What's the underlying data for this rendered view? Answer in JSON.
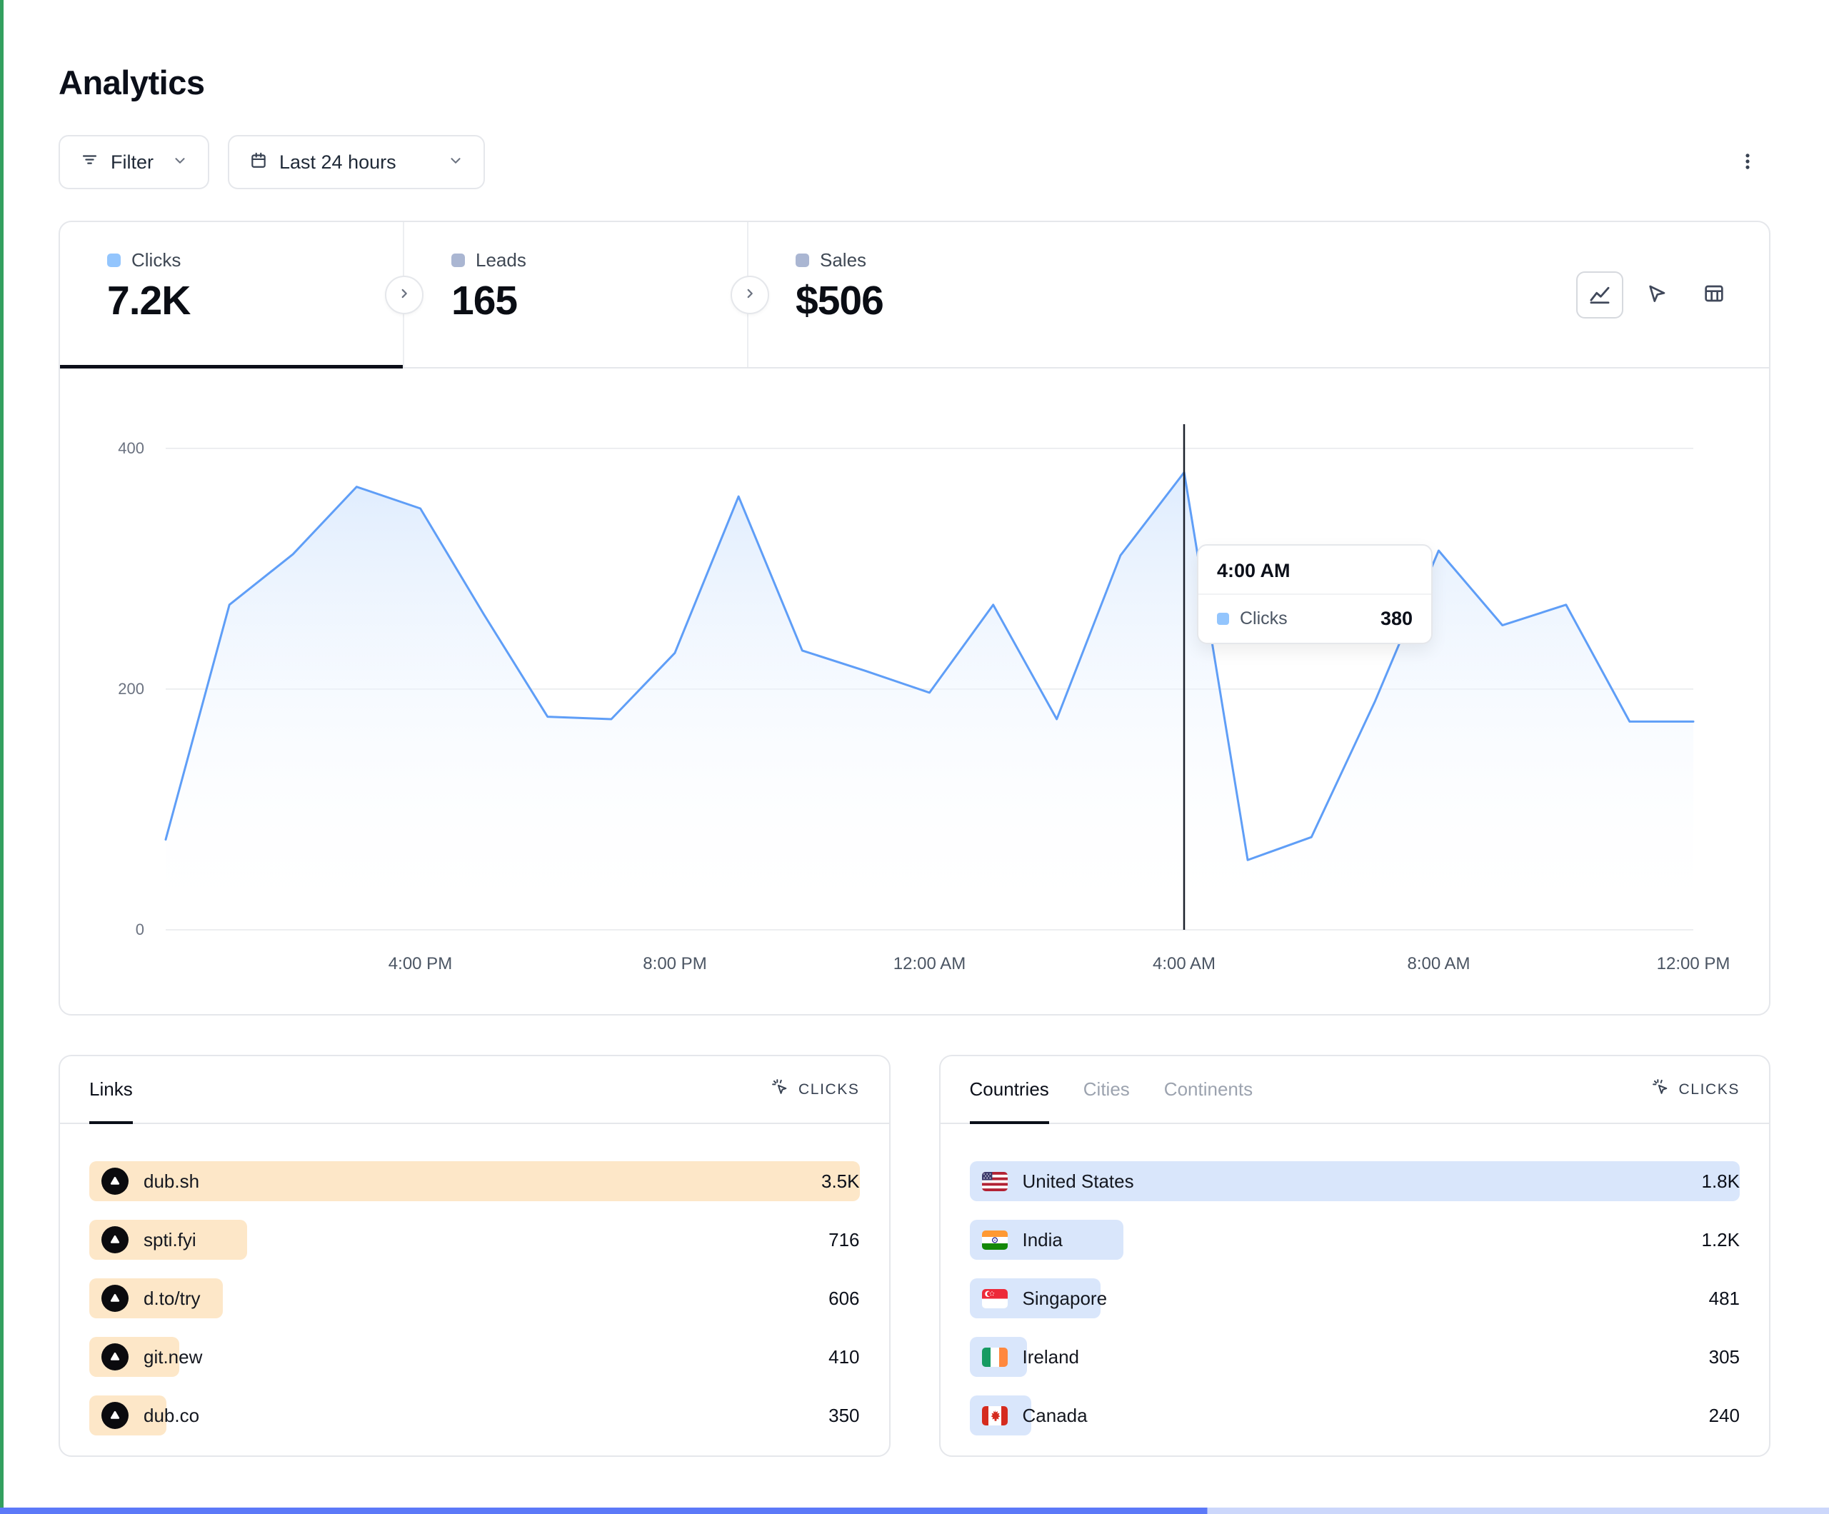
{
  "page": {
    "title": "Analytics"
  },
  "toolbar": {
    "filter_label": "Filter",
    "date_range_label": "Last 24 hours"
  },
  "stats": {
    "tabs": [
      {
        "label": "Clicks",
        "value": "7.2K",
        "active": true,
        "dot_color": "#93c5fd"
      },
      {
        "label": "Leads",
        "value": "165",
        "active": false,
        "dot_color": "#aab6d2"
      },
      {
        "label": "Sales",
        "value": "$506",
        "active": false,
        "dot_color": "#aab6d2"
      }
    ]
  },
  "chart_data": {
    "type": "area",
    "series": [
      {
        "name": "Clicks",
        "values": [
          75,
          270,
          312,
          368,
          350,
          262,
          177,
          175,
          230,
          360,
          232,
          215,
          197,
          270,
          175,
          311,
          380,
          58,
          77,
          190,
          315,
          253,
          270,
          173,
          173
        ]
      }
    ],
    "x_tick_labels": [
      "4:00 PM",
      "8:00 PM",
      "12:00 AM",
      "4:00 AM",
      "8:00 AM",
      "12:00 PM"
    ],
    "x_tick_indices": [
      4,
      8,
      12,
      16,
      20,
      24
    ],
    "y_ticks": [
      0,
      200,
      400
    ],
    "ylim": [
      0,
      420
    ],
    "grid": true,
    "line_color": "#5f9ef7",
    "fill_top_color": "#dbeafe",
    "tooltip": {
      "time": "4:00 AM",
      "series_label": "Clicks",
      "value": "380",
      "index": 16,
      "dot_color": "#93c5fd"
    }
  },
  "links_panel": {
    "tab_label": "Links",
    "metric_label": "CLICKS",
    "bar_color": "#fde7c8",
    "rows": [
      {
        "label": "dub.sh",
        "value": "3.5K",
        "bar_pct": 100
      },
      {
        "label": "spti.fyi",
        "value": "716",
        "bar_pct": 20.5
      },
      {
        "label": "d.to/try",
        "value": "606",
        "bar_pct": 17.3
      },
      {
        "label": "git.new",
        "value": "410",
        "bar_pct": 11.7
      },
      {
        "label": "dub.co",
        "value": "350",
        "bar_pct": 10
      }
    ]
  },
  "countries_panel": {
    "tabs": [
      "Countries",
      "Cities",
      "Continents"
    ],
    "active_tab": "Countries",
    "metric_label": "CLICKS",
    "bar_color": "#d9e6fb",
    "rows": [
      {
        "label": "United States",
        "value": "1.8K",
        "flag": "us",
        "bar_pct": 100
      },
      {
        "label": "India",
        "value": "1.2K",
        "flag": "in",
        "bar_pct": 20
      },
      {
        "label": "Singapore",
        "value": "481",
        "flag": "sg",
        "bar_pct": 17
      },
      {
        "label": "Ireland",
        "value": "305",
        "flag": "ie",
        "bar_pct": 7.5
      },
      {
        "label": "Canada",
        "value": "240",
        "flag": "ca",
        "bar_pct": 8
      }
    ]
  },
  "icons": {
    "filter": "filter-bars",
    "calendar": "calendar",
    "chevron_down": "chevron-down",
    "kebab": "vertical-dots-menu",
    "chevron_right": "chevron-right",
    "line_chart": "line-chart",
    "cursor": "cursor-arrow",
    "table": "table-grid",
    "clicks_metric": "cursor-click-rays"
  },
  "colors": {
    "border": "#e5e7eb",
    "crosshair": "#1b212c",
    "accent_blue": "#5f9ef7"
  }
}
